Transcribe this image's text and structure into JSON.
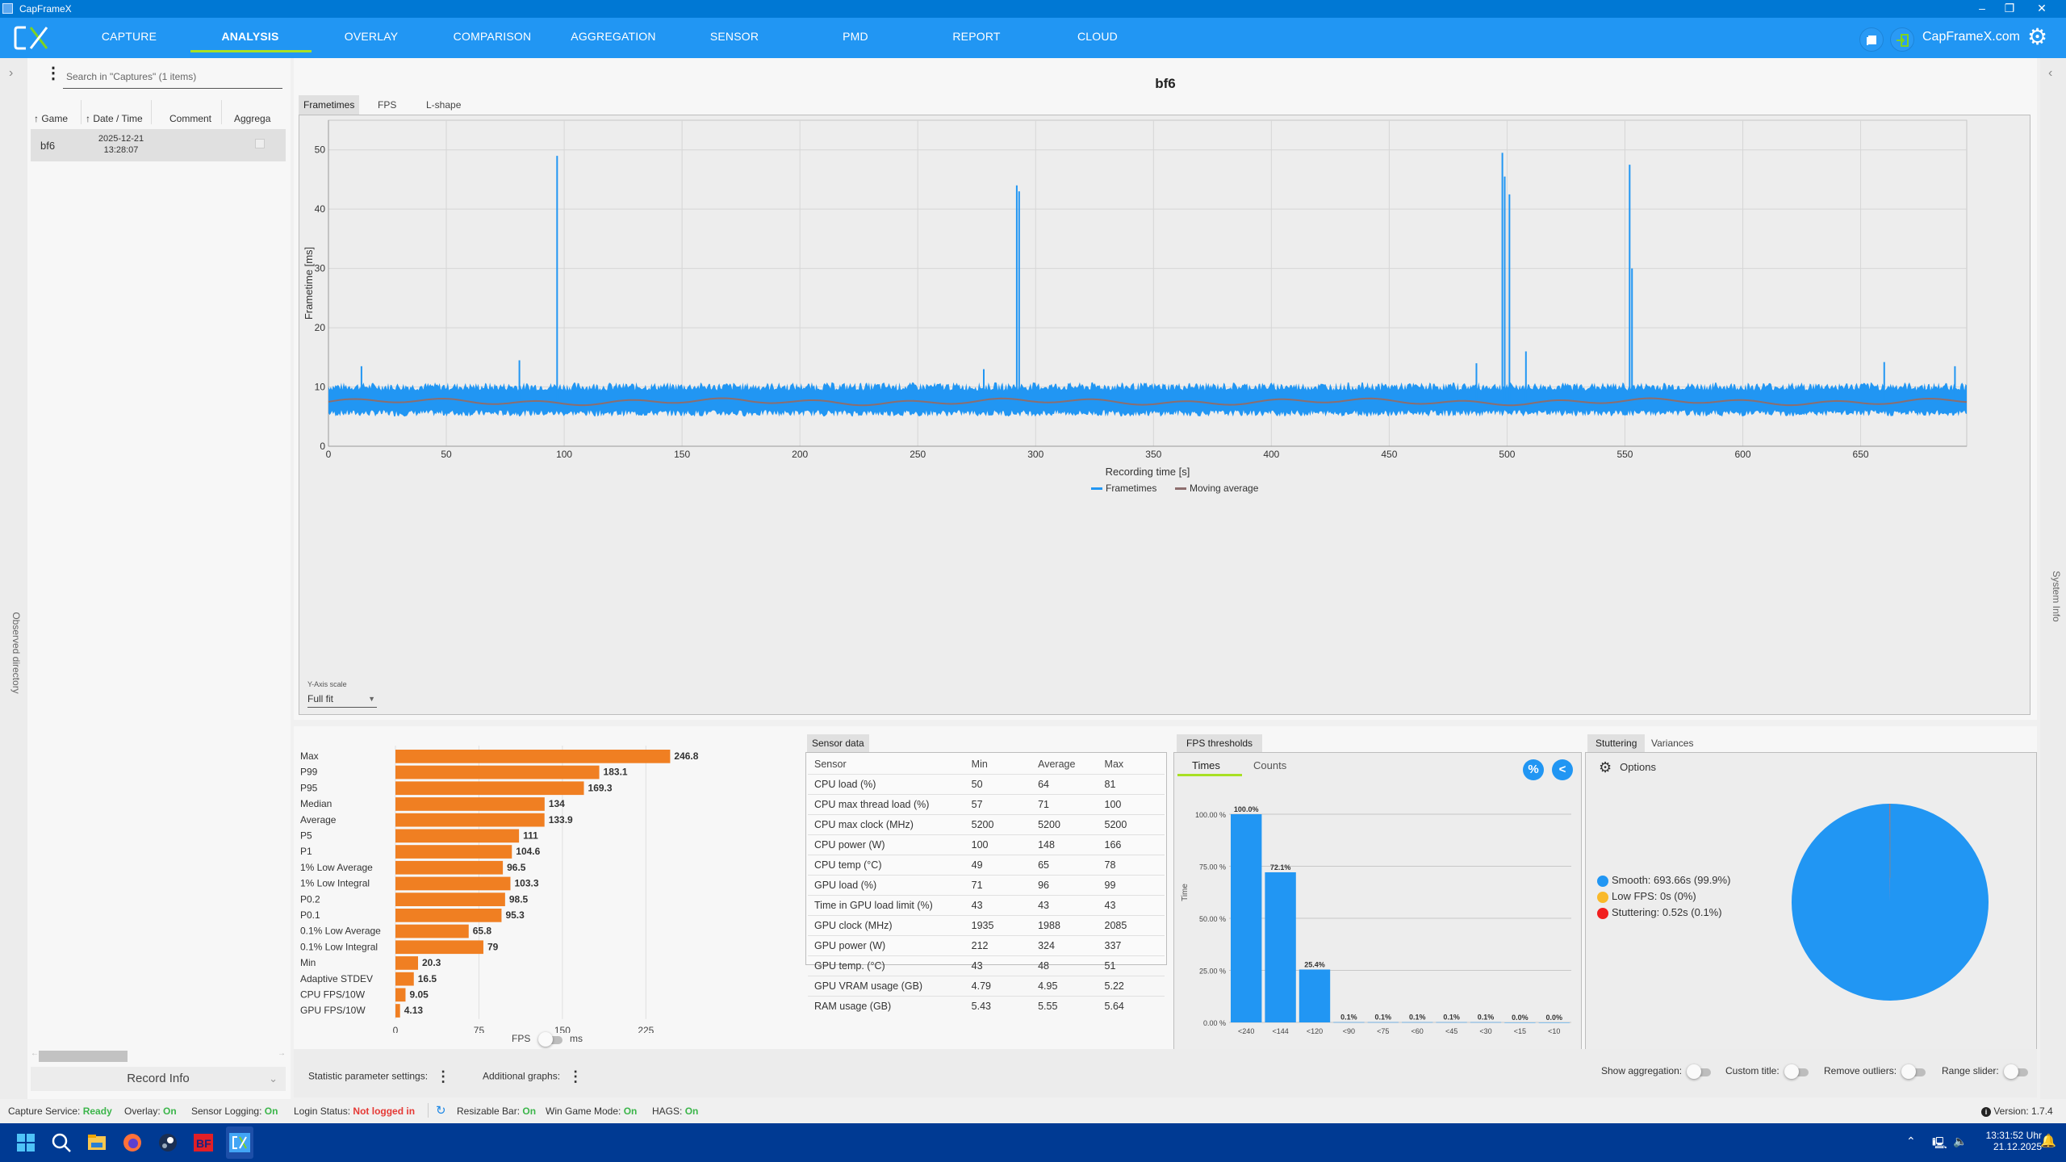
{
  "window": {
    "title": "CapFrameX",
    "minimize": "–",
    "restore": "❐",
    "close": "✕"
  },
  "nav": {
    "items": [
      {
        "label": "CAPTURE"
      },
      {
        "label": "ANALYSIS",
        "active": true
      },
      {
        "label": "OVERLAY"
      },
      {
        "label": "COMPARISON"
      },
      {
        "label": "AGGREGATION"
      },
      {
        "label": "SENSOR"
      },
      {
        "label": "PMD"
      },
      {
        "label": "REPORT"
      },
      {
        "label": "CLOUD"
      }
    ],
    "site_link": "CapFrameX.com",
    "accent": "#a8e024",
    "bar_color": "#2196f3"
  },
  "left_panel": {
    "observed_directory": "Observed directory",
    "search_placeholder": "Search in \"Captures\" (1 items)",
    "columns": [
      "Game",
      "Date / Time",
      "Comment",
      "Aggrega"
    ],
    "rows": [
      {
        "game": "bf6",
        "date": "2025-12-21",
        "time": "13:28:07"
      }
    ],
    "record_info": "Record Info"
  },
  "right_panel": {
    "system_info": "System Info"
  },
  "main": {
    "chart_title": "bf6",
    "tabs": [
      "Frametimes",
      "FPS",
      "L-shape"
    ],
    "y_axis_scale_label": "Y-Axis scale",
    "y_axis_scale_value": "Full fit"
  },
  "chart_data": [
    {
      "type": "line",
      "title": "bf6",
      "xlabel": "Recording time [s]",
      "ylabel": "Frametime [ms]",
      "xlim": [
        0,
        695
      ],
      "ylim": [
        0,
        55
      ],
      "xticks": [
        0,
        50,
        100,
        150,
        200,
        250,
        300,
        350,
        400,
        450,
        500,
        550,
        600,
        650
      ],
      "yticks": [
        0,
        10,
        20,
        30,
        40,
        50
      ],
      "grid": true,
      "legend": {
        "position": "bottom",
        "entries": [
          "Frametimes",
          "Moving average"
        ]
      },
      "series_colors": {
        "Frametimes": "#2196f3",
        "Moving average": "#8d6e6e"
      },
      "baseline_ms": 7.5,
      "noise_range_ms": [
        5,
        10
      ],
      "spikes": [
        {
          "x": 97,
          "y": 49
        },
        {
          "x": 81,
          "y": 14.5
        },
        {
          "x": 14,
          "y": 13.5
        },
        {
          "x": 292,
          "y": 44
        },
        {
          "x": 293,
          "y": 43
        },
        {
          "x": 278,
          "y": 13
        },
        {
          "x": 498,
          "y": 49.5
        },
        {
          "x": 499,
          "y": 45.5
        },
        {
          "x": 501,
          "y": 42.5
        },
        {
          "x": 552,
          "y": 47.5
        },
        {
          "x": 553,
          "y": 30
        },
        {
          "x": 660,
          "y": 14.2
        },
        {
          "x": 690,
          "y": 13.5
        },
        {
          "x": 508,
          "y": 16
        },
        {
          "x": 487,
          "y": 14
        }
      ]
    },
    {
      "type": "bar",
      "orientation": "horizontal",
      "categories": [
        "Max",
        "P99",
        "P95",
        "Median",
        "Average",
        "P5",
        "P1",
        "1% Low Average",
        "1% Low Integral",
        "P0.2",
        "P0.1",
        "0.1% Low Average",
        "0.1% Low Integral",
        "Min",
        "Adaptive STDEV",
        "CPU FPS/10W",
        "GPU FPS/10W"
      ],
      "values": [
        246.8,
        183.1,
        169.3,
        134,
        133.9,
        111,
        104.6,
        96.5,
        103.3,
        98.5,
        95.3,
        65.8,
        79,
        20.3,
        16.5,
        9.05,
        4.13
      ],
      "labels": [
        "246.8",
        "183.1",
        "169.3",
        "134",
        "133.9",
        "111",
        "104.6",
        "96.5",
        "103.3",
        "98.5",
        "95.3",
        "65.8",
        "79",
        "20.3",
        "16.5",
        "9.05",
        "4.13"
      ],
      "xticks": [
        0,
        75,
        150,
        225
      ],
      "xlim": [
        0,
        290
      ],
      "bar_color": "#f07f22",
      "unit_toggle": {
        "left": "FPS",
        "right": "ms"
      }
    },
    {
      "type": "bar",
      "title": "FPS thresholds",
      "ylabel": "Time",
      "categories": [
        "<240",
        "<144",
        "<120",
        "<90",
        "<75",
        "<60",
        "<45",
        "<30",
        "<15",
        "<10"
      ],
      "values": [
        100.0,
        72.1,
        25.4,
        0.1,
        0.1,
        0.1,
        0.1,
        0.1,
        0.0,
        0.0
      ],
      "labels": [
        "100.0%",
        "72.1%",
        "25.4%",
        "0.1%",
        "0.1%",
        "0.1%",
        "0.1%",
        "0.1%",
        "0.0%",
        "0.0%"
      ],
      "yticks": [
        "0.00 %",
        "25.00 %",
        "50.00 %",
        "75.00 %",
        "100.00 %"
      ],
      "ylim": [
        0,
        100
      ],
      "bar_color": "#2196f3"
    },
    {
      "type": "pie",
      "title": "Stuttering",
      "slices": [
        {
          "label": "Smooth",
          "value": 99.9,
          "text": "Smooth:  693.66s (99.9%)",
          "color": "#2196f3"
        },
        {
          "label": "Low FPS",
          "value": 0,
          "text": "Low FPS:  0s (0%)",
          "color": "#f9b92a"
        },
        {
          "label": "Stuttering",
          "value": 0.1,
          "text": "Stuttering:  0.52s (0.1%)",
          "color": "#f21f1f"
        }
      ]
    }
  ],
  "sensor": {
    "tab": "Sensor data",
    "headers": [
      "Sensor",
      "Min",
      "Average",
      "Max"
    ],
    "rows": [
      [
        "CPU load (%)",
        "50",
        "64",
        "81"
      ],
      [
        "CPU max thread load (%)",
        "57",
        "71",
        "100"
      ],
      [
        "CPU max clock (MHz)",
        "5200",
        "5200",
        "5200"
      ],
      [
        "CPU power (W)",
        "100",
        "148",
        "166"
      ],
      [
        "CPU temp (°C)",
        "49",
        "65",
        "78"
      ],
      [
        "GPU load (%)",
        "71",
        "96",
        "99"
      ],
      [
        "Time in GPU load limit (%)",
        "43",
        "43",
        "43"
      ],
      [
        "GPU clock (MHz)",
        "1935",
        "1988",
        "2085"
      ],
      [
        "GPU power (W)",
        "212",
        "324",
        "337"
      ],
      [
        "GPU temp. (°C)",
        "43",
        "48",
        "51"
      ],
      [
        "GPU VRAM usage (GB)",
        "4.79",
        "4.95",
        "5.22"
      ],
      [
        "RAM usage (GB)",
        "5.43",
        "5.55",
        "5.64"
      ]
    ]
  },
  "fps_thresholds": {
    "tab": "FPS thresholds",
    "subtabs": [
      "Times",
      "Counts"
    ],
    "percent_btn": "%",
    "back_btn": "<"
  },
  "stuttering": {
    "tabs": [
      "Stuttering",
      "Variances"
    ],
    "options": "Options"
  },
  "settings_bar": {
    "statistic_parameter_settings": "Statistic parameter settings:",
    "additional_graphs": "Additional graphs:",
    "show_aggregation": "Show aggregation:",
    "custom_title": "Custom title:",
    "remove_outliers": "Remove outliers:",
    "range_slider": "Range slider:"
  },
  "status": {
    "capture_service": {
      "label": "Capture Service:",
      "value": "Ready"
    },
    "overlay": {
      "label": "Overlay:",
      "value": "On"
    },
    "sensor_logging": {
      "label": "Sensor Logging:",
      "value": "On"
    },
    "login_status": {
      "label": "Login Status:",
      "value": "Not logged in"
    },
    "resizable_bar": {
      "label": "Resizable Bar:",
      "value": "On"
    },
    "win_game_mode": {
      "label": "Win Game Mode:",
      "value": "On"
    },
    "hags": {
      "label": "HAGS:",
      "value": "On"
    },
    "version": "Version: 1.7.4"
  },
  "taskbar": {
    "time": "13:31:52 Uhr",
    "date": "21.12.2025"
  }
}
